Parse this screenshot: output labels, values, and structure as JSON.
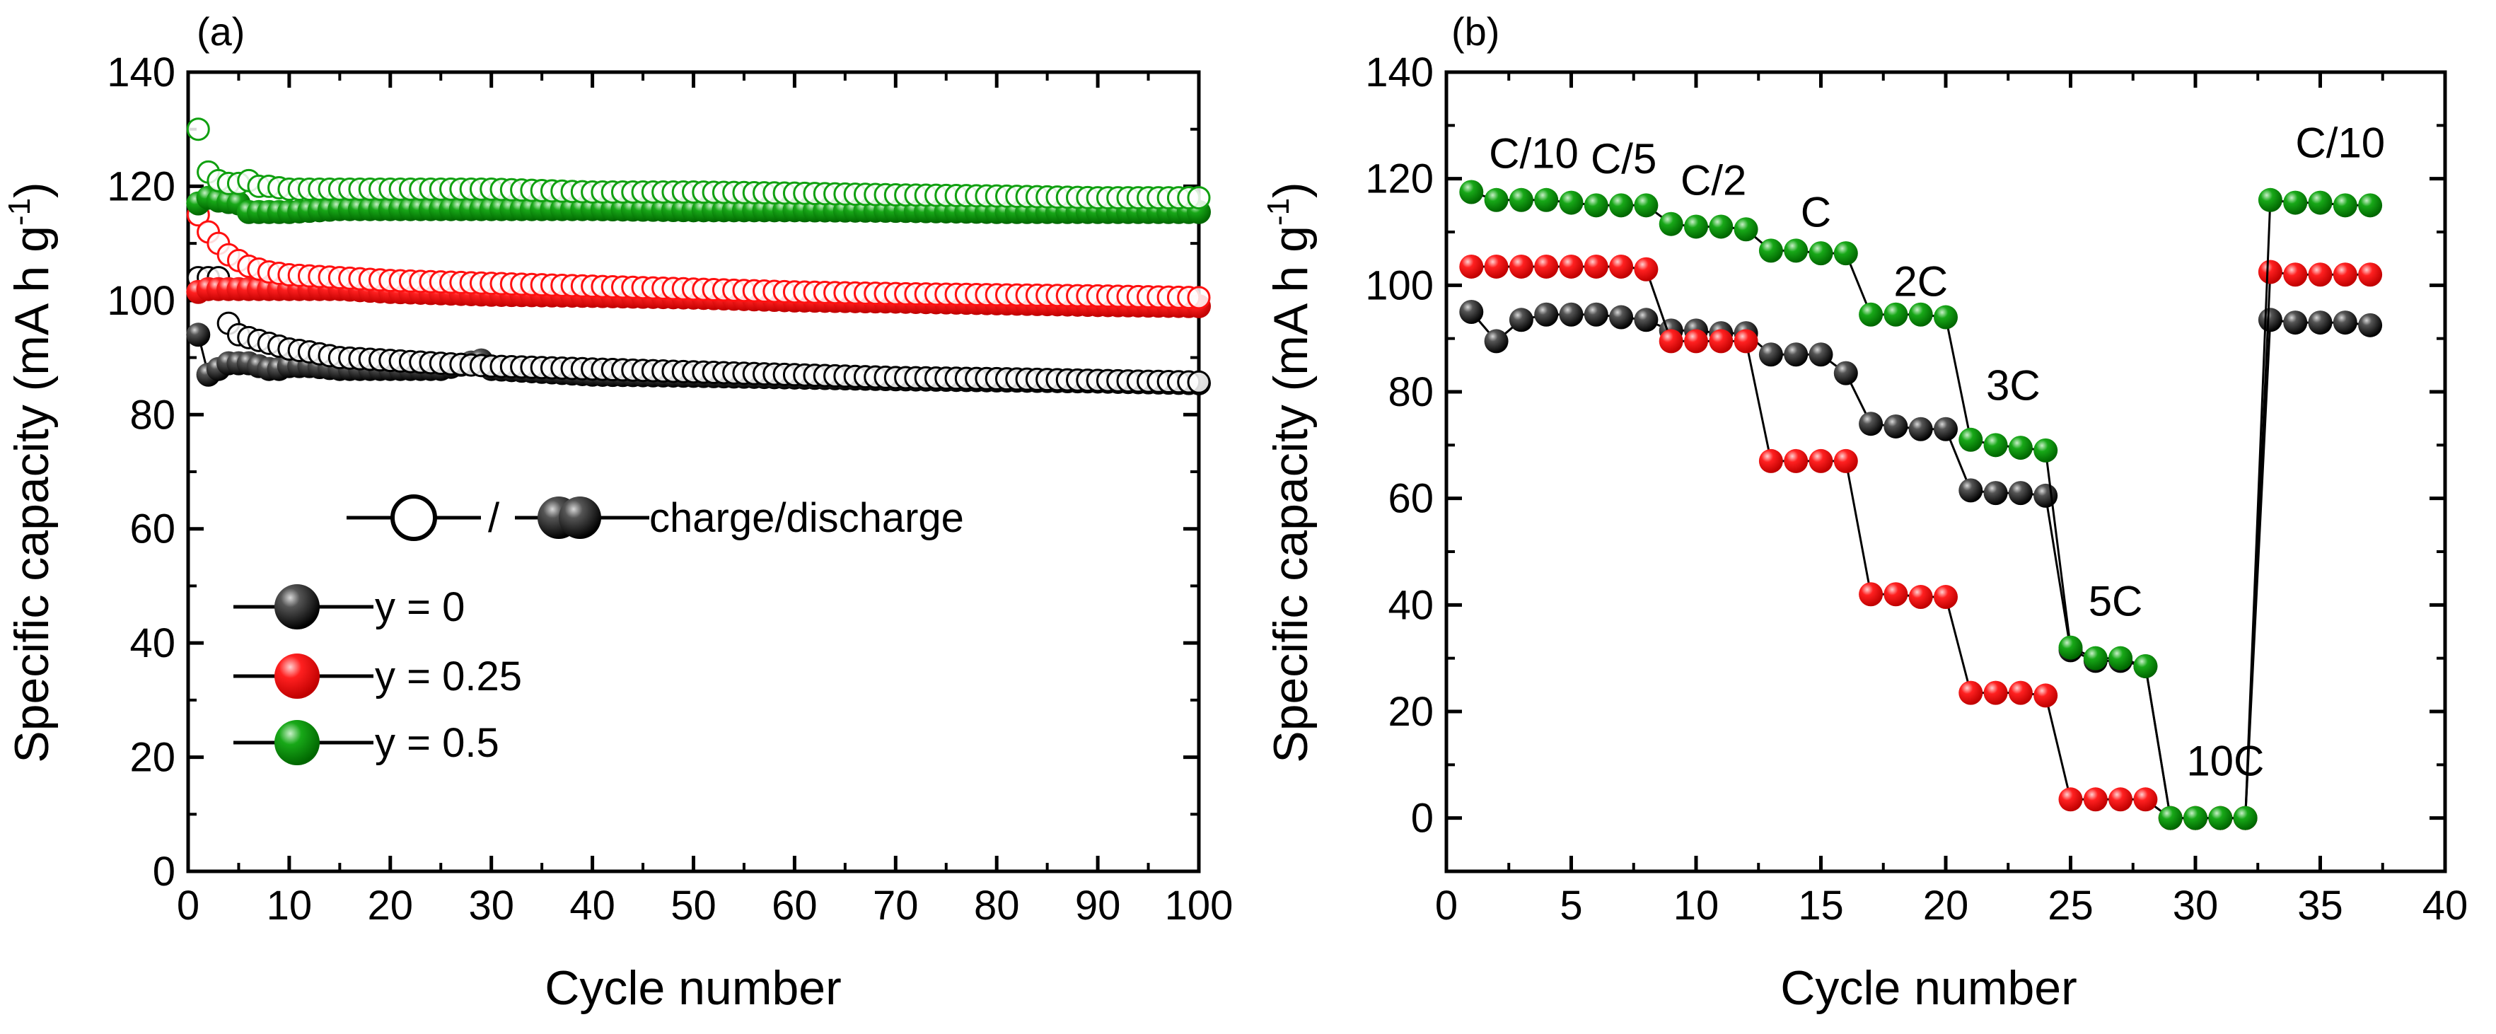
{
  "colors": {
    "black_series": "#000000",
    "red_series": "#ff1010",
    "green_series": "#10a010",
    "axis": "#000000"
  },
  "chart_data": [
    {
      "id": "a",
      "type": "scatter",
      "panel_label": "(a)",
      "xlabel": "Cycle number",
      "ylabel_main": "Specific capacity (mA h g",
      "ylabel_sup": "-1",
      "ylabel_end": ")",
      "xlim": [
        0,
        100
      ],
      "ylim": [
        0,
        140
      ],
      "xticks": [
        0,
        10,
        20,
        30,
        40,
        50,
        60,
        70,
        80,
        90,
        100
      ],
      "yticks": [
        0,
        20,
        40,
        60,
        80,
        100,
        120,
        140
      ],
      "legend": {
        "mode_open": "",
        "mode_sep": "/",
        "mode_text": "charge/discharge",
        "entries": [
          "y = 0",
          "y = 0.25",
          "y = 0.5"
        ]
      },
      "series": [
        {
          "name": "y = 0",
          "color": "#000000",
          "charge": {
            "x": [
              1,
              2,
              3,
              4,
              5,
              6,
              7,
              8,
              9,
              10,
              12,
              15,
              20,
              25,
              30,
              40,
              50,
              60,
              70,
              80,
              90,
              100
            ],
            "y": [
              104,
              104,
              104,
              96,
              94,
              93.5,
              93,
              92.5,
              92,
              91.5,
              91,
              90,
              89.5,
              89,
              88.5,
              88,
              87.5,
              87,
              86.5,
              86.3,
              86,
              85.7
            ]
          },
          "discharge": {
            "x": [
              1,
              2,
              3,
              4,
              5,
              6,
              7,
              8,
              9,
              10,
              12,
              15,
              20,
              25,
              29,
              30,
              40,
              50,
              60,
              70,
              80,
              90,
              100
            ],
            "y": [
              94,
              87,
              88,
              89,
              89,
              89,
              88.5,
              88,
              88,
              88.5,
              88.5,
              88,
              88,
              88,
              89.5,
              88,
              87,
              86.8,
              86.5,
              86.2,
              86,
              85.8,
              85.5
            ]
          }
        },
        {
          "name": "y = 0.25",
          "color": "#ff1010",
          "charge": {
            "x": [
              1,
              2,
              3,
              4,
              5,
              6,
              7,
              8,
              10,
              15,
              20,
              30,
              40,
              50,
              60,
              70,
              80,
              90,
              100
            ],
            "y": [
              115,
              112,
              110,
              108,
              107,
              106,
              105.5,
              105,
              104.5,
              104,
              103.5,
              103,
              102.5,
              102,
              101.5,
              101.2,
              101,
              100.8,
              100.5
            ]
          },
          "discharge": {
            "x": [
              1,
              2,
              3,
              5,
              10,
              15,
              20,
              30,
              40,
              50,
              60,
              70,
              80,
              90,
              100
            ],
            "y": [
              101.5,
              102,
              102,
              102,
              102,
              102,
              101.5,
              101,
              100.8,
              100.5,
              100,
              99.8,
              99.5,
              99.2,
              99
            ]
          }
        },
        {
          "name": "y = 0.5",
          "color": "#10a010",
          "charge": {
            "x": [
              1,
              2,
              3,
              4,
              5,
              6,
              7,
              8,
              10,
              15,
              20,
              30,
              40,
              50,
              60,
              70,
              80,
              90,
              100
            ],
            "y": [
              130,
              122.5,
              121,
              120.5,
              120.5,
              121,
              120,
              120,
              119.5,
              119.5,
              119.5,
              119.5,
              119,
              119,
              118.8,
              118.5,
              118.3,
              118,
              118
            ]
          },
          "discharge": {
            "x": [
              1,
              2,
              3,
              5,
              6,
              10,
              15,
              20,
              30,
              40,
              50,
              60,
              70,
              80,
              90,
              100
            ],
            "y": [
              117,
              118,
              117.5,
              117,
              115.5,
              115.5,
              116,
              116,
              116,
              116,
              115.8,
              115.8,
              115.7,
              115.5,
              115.5,
              115.5
            ]
          }
        }
      ]
    },
    {
      "id": "b",
      "type": "line",
      "panel_label": "(b)",
      "xlabel": "Cycle number",
      "ylabel_main": "Specific capacity (mA h g",
      "ylabel_sup": "-1",
      "ylabel_end": ")",
      "xlim": [
        0,
        40
      ],
      "ylim": [
        -10,
        140
      ],
      "xticks": [
        0,
        5,
        10,
        15,
        20,
        25,
        30,
        35,
        40
      ],
      "yticks": [
        0,
        20,
        40,
        60,
        80,
        100,
        120,
        140
      ],
      "rate_labels": [
        {
          "text": "C/10",
          "x": 3.5,
          "y": 122
        },
        {
          "text": "C/5",
          "x": 7.1,
          "y": 121
        },
        {
          "text": "C/2",
          "x": 10.7,
          "y": 117
        },
        {
          "text": "C",
          "x": 14.8,
          "y": 111
        },
        {
          "text": "2C",
          "x": 19,
          "y": 98
        },
        {
          "text": "3C",
          "x": 22.7,
          "y": 78.5
        },
        {
          "text": "5C",
          "x": 26.8,
          "y": 38
        },
        {
          "text": "10C",
          "x": 31.2,
          "y": 8
        },
        {
          "text": "C/10",
          "x": 35.8,
          "y": 124
        }
      ],
      "series": [
        {
          "name": "y = 0",
          "color": "#000000",
          "x": [
            1,
            2,
            3,
            4,
            5,
            6,
            7,
            8,
            9,
            10,
            11,
            12,
            13,
            14,
            15,
            16,
            17,
            18,
            19,
            20,
            21,
            22,
            23,
            24,
            25,
            26,
            27,
            28,
            29,
            30,
            31,
            32,
            33,
            34,
            35,
            36,
            37
          ],
          "y": [
            95,
            89.5,
            93.5,
            94.5,
            94.5,
            94.5,
            94,
            93.5,
            91.5,
            91.5,
            91,
            91,
            87,
            87,
            87,
            83.5,
            74,
            73.5,
            73,
            73,
            61.5,
            61,
            61,
            60.5,
            31.5,
            29.5,
            29.5,
            28.5,
            0,
            0,
            0,
            0,
            93.5,
            93,
            93,
            93,
            92.5
          ]
        },
        {
          "name": "y = 0.25",
          "color": "#ff1010",
          "x": [
            1,
            2,
            3,
            4,
            5,
            6,
            7,
            8,
            9,
            10,
            11,
            12,
            13,
            14,
            15,
            16,
            17,
            18,
            19,
            20,
            21,
            22,
            23,
            24,
            25,
            26,
            27,
            28,
            29,
            30,
            31,
            32,
            33,
            34,
            35,
            36,
            37
          ],
          "y": [
            103.5,
            103.5,
            103.5,
            103.5,
            103.5,
            103.5,
            103.5,
            103,
            89.5,
            89.5,
            89.5,
            89.5,
            67,
            67,
            67,
            67,
            42,
            42,
            41.5,
            41.5,
            23.5,
            23.5,
            23.5,
            23,
            3.5,
            3.5,
            3.5,
            3.5,
            0,
            0,
            0,
            0,
            102.5,
            102,
            102,
            102,
            102
          ]
        },
        {
          "name": "y = 0.5",
          "color": "#10a010",
          "x": [
            1,
            2,
            3,
            4,
            5,
            6,
            7,
            8,
            9,
            10,
            11,
            12,
            13,
            14,
            15,
            16,
            17,
            18,
            19,
            20,
            21,
            22,
            23,
            24,
            25,
            26,
            27,
            28,
            29,
            30,
            31,
            32,
            33,
            34,
            35,
            36,
            37
          ],
          "y": [
            117.5,
            116,
            116,
            116,
            115.5,
            115,
            115,
            115,
            111.5,
            111,
            111,
            110.5,
            106.5,
            106.5,
            106,
            106,
            94.5,
            94.5,
            94.5,
            94,
            71,
            70,
            69.5,
            69,
            32,
            30,
            30,
            28.5,
            0,
            0,
            0,
            0,
            116,
            115.5,
            115.5,
            115,
            115
          ]
        }
      ]
    }
  ]
}
